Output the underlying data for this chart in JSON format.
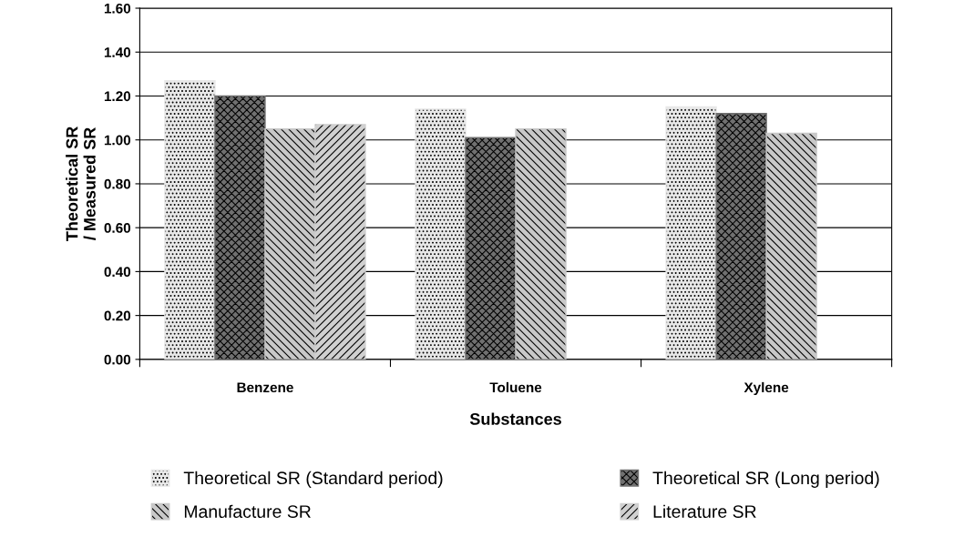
{
  "chart_data": {
    "type": "bar",
    "xlabel": "Substances",
    "ylabel": "Theoretical SR\n/ Measured SR",
    "categories": [
      "Benzene",
      "Toluene",
      "Xylene"
    ],
    "series": [
      {
        "name": "Theoretical SR (Standard period)",
        "color": "#e8e8e8",
        "values": [
          1.27,
          1.14,
          1.15
        ]
      },
      {
        "name": "Theoretical SR (Long period)",
        "color": "#707070",
        "values": [
          1.2,
          1.01,
          1.12
        ]
      },
      {
        "name": "Manufacture SR",
        "color": "#c8c8c8",
        "values": [
          1.05,
          1.05,
          1.03
        ]
      },
      {
        "name": "Literature SR",
        "color": "#d0d0d0",
        "values": [
          1.07,
          null,
          null
        ]
      }
    ],
    "ylim": [
      0,
      1.6
    ],
    "yticks": [
      {
        "value": 0,
        "label": "0.00"
      },
      {
        "value": 0.2,
        "label": "0.20"
      },
      {
        "value": 0.4,
        "label": "0.40"
      },
      {
        "value": 0.6,
        "label": "0.60"
      },
      {
        "value": 0.8,
        "label": "0.80"
      },
      {
        "value": 1.0,
        "label": "1.00"
      },
      {
        "value": 1.2,
        "label": "1.20"
      },
      {
        "value": 1.4,
        "label": "1.40"
      },
      {
        "value": 1.6,
        "label": "1.60"
      }
    ],
    "grid": "y",
    "legend": "bottom"
  }
}
